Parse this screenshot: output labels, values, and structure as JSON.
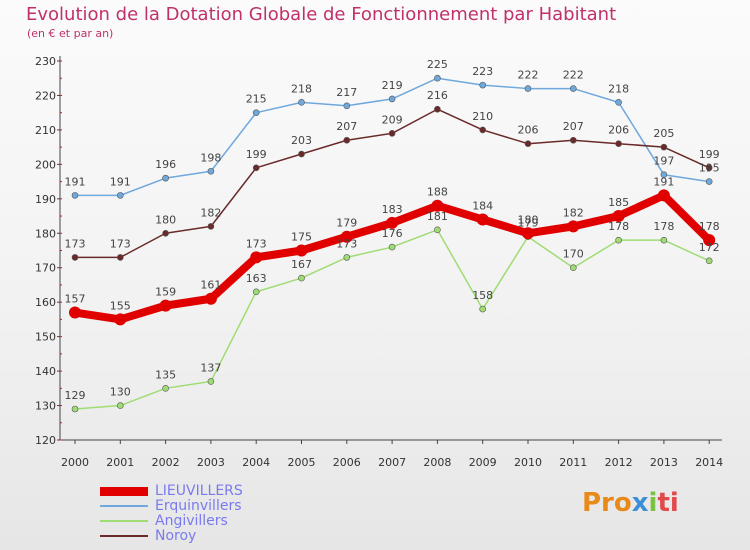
{
  "header": {
    "title": "Evolution de la Dotation Globale de Fonctionnement par Habitant",
    "subtitle": "(en € et par an)"
  },
  "logo": {
    "part1": "Pro",
    "part2": "x",
    "part3": "i",
    "part4": "ti"
  },
  "chart_data": {
    "type": "line",
    "title": "Evolution de la Dotation Globale de Fonctionnement par Habitant",
    "subtitle": "(en € et par an)",
    "xlabel": "",
    "ylabel": "",
    "x": [
      "2000",
      "2001",
      "2002",
      "2003",
      "2004",
      "2005",
      "2006",
      "2007",
      "2008",
      "2009",
      "2010",
      "2011",
      "2012",
      "2013",
      "2014"
    ],
    "ylim": [
      120,
      230
    ],
    "yticks": [
      120,
      130,
      140,
      150,
      160,
      170,
      180,
      190,
      200,
      210,
      220,
      230
    ],
    "grid": false,
    "legend_position": "bottom-left",
    "series": [
      {
        "name": "LIEUVILLERS",
        "color": "#e00000",
        "values": [
          157,
          155,
          159,
          161,
          173,
          175,
          179,
          183,
          188,
          184,
          180,
          182,
          185,
          191,
          178
        ]
      },
      {
        "name": "Erquinvillers",
        "color": "#6fa8dc",
        "values": [
          191,
          191,
          196,
          198,
          215,
          218,
          217,
          219,
          225,
          223,
          222,
          222,
          218,
          197,
          195
        ]
      },
      {
        "name": "Angivillers",
        "color": "#9fdc73",
        "values": [
          129,
          130,
          135,
          137,
          163,
          167,
          173,
          176,
          181,
          158,
          179,
          170,
          178,
          178,
          172
        ]
      },
      {
        "name": "Noroy",
        "color": "#6b2a2a",
        "values": [
          173,
          173,
          180,
          182,
          199,
          203,
          207,
          209,
          216,
          210,
          206,
          207,
          206,
          205,
          199
        ]
      }
    ]
  }
}
